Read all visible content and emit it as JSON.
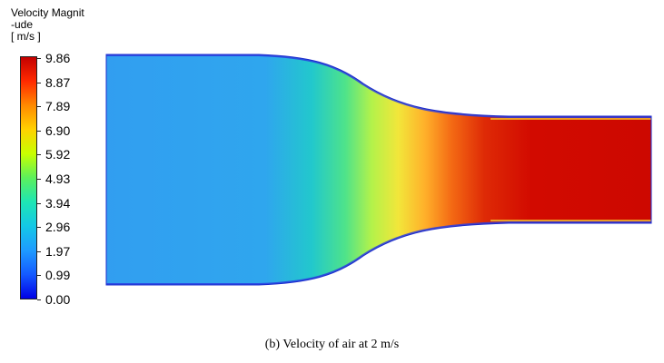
{
  "legend": {
    "title_line1": "Velocity Magnit",
    "title_line2": "-ude",
    "unit": "[ m/s ]",
    "ticks": [
      "9.86",
      "8.87",
      "7.89",
      "6.90",
      "5.92",
      "4.93",
      "3.94",
      "2.96",
      "1.97",
      "0.99",
      "0.00"
    ],
    "colors": [
      "#c40000",
      "#ff2a00",
      "#ff8a00",
      "#ffd200",
      "#c8ff00",
      "#5cf05c",
      "#1ee6b4",
      "#14c8e6",
      "#1e9bff",
      "#145aff",
      "#0000e6"
    ]
  },
  "figure": {
    "caption": "(b)  Velocity of air at 2 m/s",
    "inlet_color": "#3399f2",
    "wall_color": "#1e2fd8",
    "outlet_color": "#d40c00"
  }
}
